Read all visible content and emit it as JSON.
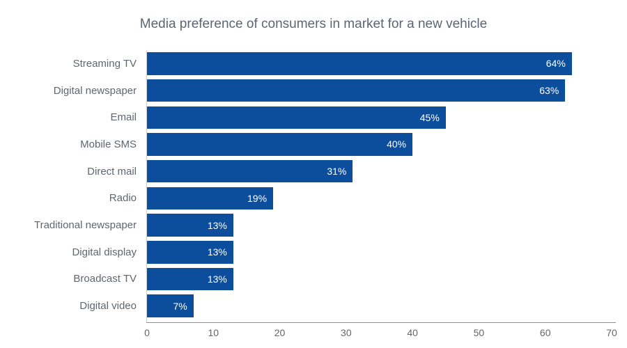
{
  "chart_data": {
    "type": "bar",
    "orientation": "horizontal",
    "title": "Media preference of consumers in market for a new vehicle",
    "categories": [
      "Streaming TV",
      "Digital newspaper",
      "Email",
      "Mobile SMS",
      "Direct mail",
      "Radio",
      "Traditional newspaper",
      "Digital display",
      "Broadcast TV",
      "Digital video"
    ],
    "values": [
      64,
      63,
      45,
      40,
      31,
      19,
      13,
      13,
      13,
      7
    ],
    "value_labels": [
      "64%",
      "63%",
      "45%",
      "40%",
      "31%",
      "19%",
      "13%",
      "13%",
      "13%",
      "7%"
    ],
    "xticks": [
      "0",
      "10",
      "20",
      "30",
      "40",
      "50",
      "60",
      "70"
    ],
    "xtick_values": [
      0,
      10,
      20,
      30,
      40,
      50,
      60,
      70
    ],
    "xlim": [
      0,
      70
    ],
    "xlabel": "",
    "ylabel": "",
    "grid": false,
    "legend": null,
    "bar_color": "#0d4e9c",
    "value_label_color": "#ffffff",
    "title_color": "#5c6570",
    "category_label_color": "#5f6670",
    "tick_label_color": "#61676d",
    "axis_line_color": "#8a9097",
    "background_color": "#ffffff"
  }
}
